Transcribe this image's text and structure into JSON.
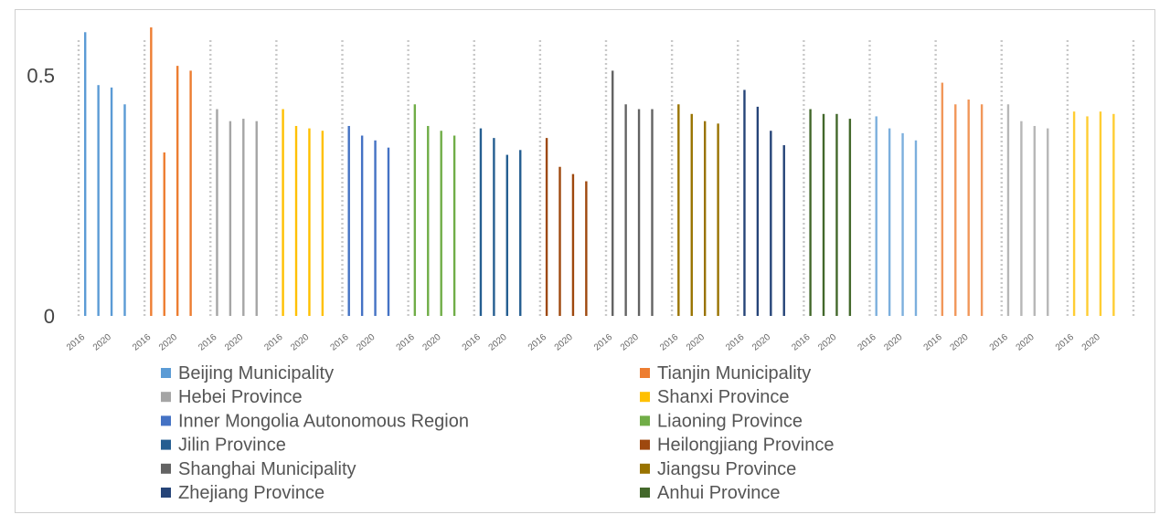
{
  "chart_data": {
    "type": "bar",
    "ylim": [
      0,
      0.6
    ],
    "yticks": [
      {
        "value": 0,
        "label": "0"
      },
      {
        "value": 0.5,
        "label": "0.5"
      }
    ],
    "bars_per_series": 5,
    "category_labels": [
      "2016",
      "",
      "2020",
      "",
      ""
    ],
    "grid": "dotted vertical separators between series",
    "legend_position": "bottom",
    "series": [
      {
        "name": "Beijing Municipality",
        "color": "#5B9BD5",
        "values": [
          0.59,
          0.48,
          0.475,
          0.44,
          null
        ]
      },
      {
        "name": "Tianjin Municipality",
        "color": "#ED7D31",
        "values": [
          0.6,
          0.34,
          0.52,
          0.51,
          null
        ]
      },
      {
        "name": "Hebei Province",
        "color": "#A5A5A5",
        "values": [
          0.43,
          0.405,
          0.41,
          0.405,
          null
        ]
      },
      {
        "name": "Shanxi Province",
        "color": "#FFC000",
        "values": [
          0.43,
          0.395,
          0.39,
          0.385,
          null
        ]
      },
      {
        "name": "Inner Mongolia Autonomous Region",
        "color": "#4472C4",
        "values": [
          0.395,
          0.375,
          0.365,
          0.35,
          null
        ]
      },
      {
        "name": "Liaoning Province",
        "color": "#70AD47",
        "values": [
          0.44,
          0.395,
          0.385,
          0.375,
          null
        ]
      },
      {
        "name": "Jilin Province",
        "color": "#255E91",
        "values": [
          0.39,
          0.37,
          0.335,
          0.345,
          null
        ]
      },
      {
        "name": "Heilongjiang Province",
        "color": "#9E480E",
        "values": [
          0.37,
          0.31,
          0.295,
          0.28,
          null
        ]
      },
      {
        "name": "Shanghai Municipality",
        "color": "#636363",
        "values": [
          0.51,
          0.44,
          0.43,
          0.43,
          null
        ]
      },
      {
        "name": "Jiangsu Province",
        "color": "#997300",
        "values": [
          0.44,
          0.42,
          0.405,
          0.4,
          null
        ]
      },
      {
        "name": "Zhejiang Province",
        "color": "#264478",
        "values": [
          0.47,
          0.435,
          0.385,
          0.355,
          null
        ]
      },
      {
        "name": "Anhui Province",
        "color": "#43682B",
        "values": [
          0.43,
          0.42,
          0.42,
          0.41,
          null
        ]
      },
      {
        "name": "",
        "color": "#7CAFDD",
        "values": [
          0.415,
          0.39,
          0.38,
          0.365,
          null
        ]
      },
      {
        "name": "",
        "color": "#F1975A",
        "values": [
          0.485,
          0.44,
          0.45,
          0.44,
          null
        ]
      },
      {
        "name": "",
        "color": "#B7B7B7",
        "values": [
          0.44,
          0.405,
          0.395,
          0.39,
          null
        ]
      },
      {
        "name": "",
        "color": "#FFCD33",
        "values": [
          0.425,
          0.415,
          0.425,
          0.42,
          null
        ]
      }
    ]
  }
}
